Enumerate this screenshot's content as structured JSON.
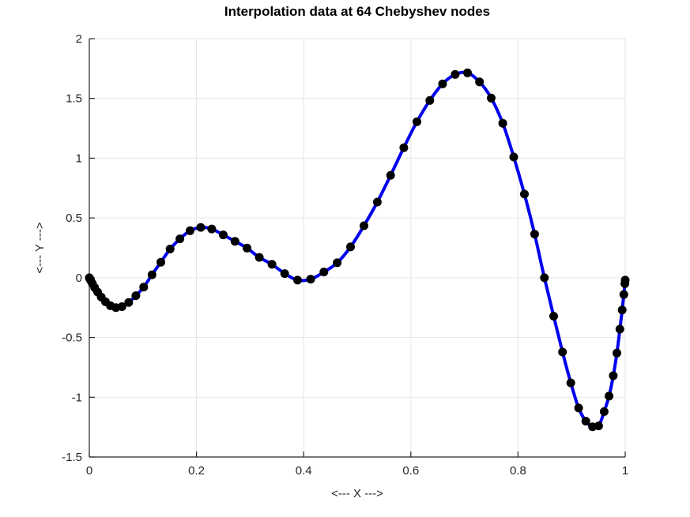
{
  "colors": {
    "background": "#ffffff",
    "line": "#0000ee",
    "marker": "#000000",
    "grid": "#e6e6e6",
    "axis": "#262626",
    "tick_text": "#262626",
    "title_text": "#000000"
  },
  "chart_data": {
    "type": "line",
    "title": "Interpolation data at 64 Chebyshev nodes",
    "xlabel": "<--- X --->",
    "ylabel": "<--- Y --->",
    "xlim": [
      0,
      1
    ],
    "ylim": [
      -1.5,
      2
    ],
    "xticks": [
      0,
      0.2,
      0.4,
      0.6,
      0.8,
      1
    ],
    "yticks": [
      -1.5,
      -1,
      -0.5,
      0,
      0.5,
      1,
      1.5,
      2
    ],
    "grid": true,
    "box": false,
    "legend": "none",
    "n_nodes": 64,
    "series": [
      {
        "name": "interpolation-data-at-chebyshev-nodes",
        "style": "line+markers",
        "color": "#0000ee",
        "line_width": 4,
        "marker": "point",
        "marker_color": "#000000",
        "marker_size": 11,
        "points": [
          [
            0,
            0
          ],
          [
            0.0006,
            -0.006
          ],
          [
            0.0025,
            -0.022
          ],
          [
            0.0056,
            -0.048
          ],
          [
            0.0099,
            -0.082
          ],
          [
            0.0155,
            -0.12
          ],
          [
            0.0222,
            -0.162
          ],
          [
            0.0302,
            -0.202
          ],
          [
            0.0393,
            -0.234
          ],
          [
            0.0495,
            -0.25
          ],
          [
            0.0609,
            -0.242
          ],
          [
            0.0734,
            -0.207
          ],
          [
            0.0869,
            -0.15
          ],
          [
            0.1015,
            -0.078
          ],
          [
            0.117,
            0.025
          ],
          [
            0.1335,
            0.13
          ],
          [
            0.1508,
            0.24
          ],
          [
            0.169,
            0.325
          ],
          [
            0.1881,
            0.393
          ],
          [
            0.208,
            0.421
          ],
          [
            0.2285,
            0.408
          ],
          [
            0.25,
            0.358
          ],
          [
            0.2718,
            0.305
          ],
          [
            0.2942,
            0.248
          ],
          [
            0.3173,
            0.17
          ],
          [
            0.3408,
            0.112
          ],
          [
            0.3646,
            0.035
          ],
          [
            0.3887,
            -0.02
          ],
          [
            0.4132,
            -0.012
          ],
          [
            0.4378,
            0.048
          ],
          [
            0.4626,
            0.125
          ],
          [
            0.4875,
            0.258
          ],
          [
            0.5125,
            0.435
          ],
          [
            0.5374,
            0.633
          ],
          [
            0.5622,
            0.857
          ],
          [
            0.5868,
            1.088
          ],
          [
            0.6113,
            1.305
          ],
          [
            0.6354,
            1.483
          ],
          [
            0.6593,
            1.622
          ],
          [
            0.6827,
            1.701
          ],
          [
            0.7058,
            1.714
          ],
          [
            0.7282,
            1.638
          ],
          [
            0.75,
            1.503
          ],
          [
            0.7715,
            1.292
          ],
          [
            0.7921,
            1.01
          ],
          [
            0.8119,
            0.7
          ],
          [
            0.831,
            0.365
          ],
          [
            0.8492,
            0
          ],
          [
            0.8665,
            -0.322
          ],
          [
            0.883,
            -0.622
          ],
          [
            0.8985,
            -0.88
          ],
          [
            0.9131,
            -1.09
          ],
          [
            0.9266,
            -1.2
          ],
          [
            0.9391,
            -1.247
          ],
          [
            0.9505,
            -1.24
          ],
          [
            0.9607,
            -1.12
          ],
          [
            0.9699,
            -0.99
          ],
          [
            0.9778,
            -0.82
          ],
          [
            0.9845,
            -0.63
          ],
          [
            0.9901,
            -0.43
          ],
          [
            0.9944,
            -0.27
          ],
          [
            0.9975,
            -0.14
          ],
          [
            0.9994,
            -0.05
          ],
          [
            1,
            -0.02
          ]
        ]
      }
    ]
  }
}
